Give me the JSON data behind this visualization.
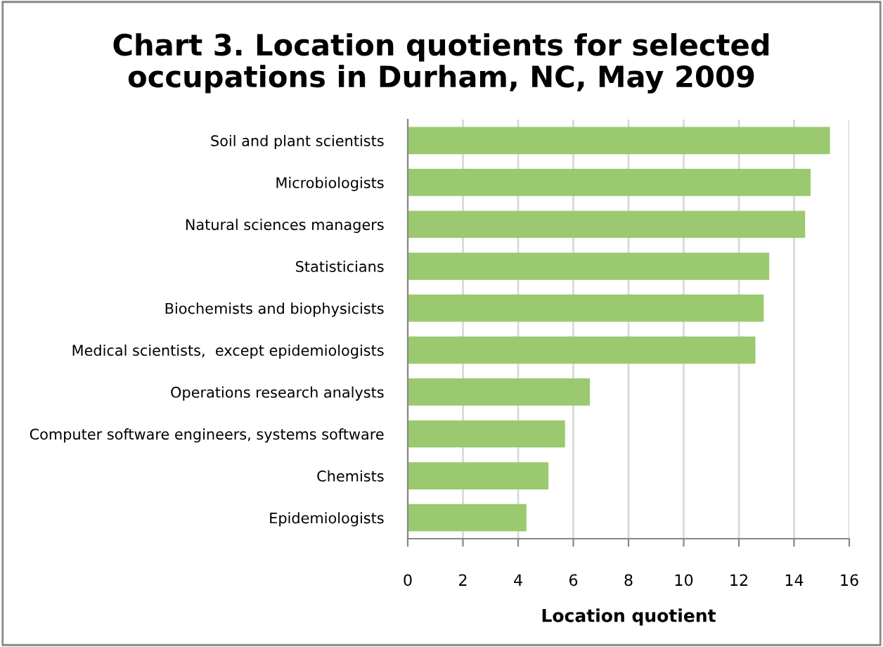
{
  "chart_data": {
    "type": "bar",
    "orientation": "horizontal",
    "title": "Chart 3. Location quotients for selected\noccupations in Durham, NC, May 2009",
    "xlabel": "Location quotient",
    "categories": [
      "Soil and plant scientists",
      "Microbiologists",
      "Natural sciences managers",
      "Statisticians",
      "Biochemists and biophysicists",
      "Medical scientists,  except epidemiologists",
      "Operations research analysts",
      "Computer software engineers, systems software",
      "Chemists",
      "Epidemiologists"
    ],
    "values": [
      15.3,
      14.6,
      14.4,
      13.1,
      12.9,
      12.6,
      6.6,
      5.7,
      5.1,
      4.3
    ],
    "color": "#9bc96f",
    "xlim": [
      0,
      16
    ],
    "xticks": [
      0,
      2,
      4,
      6,
      8,
      10,
      12,
      14,
      16
    ],
    "grid": "x",
    "legend": false
  }
}
